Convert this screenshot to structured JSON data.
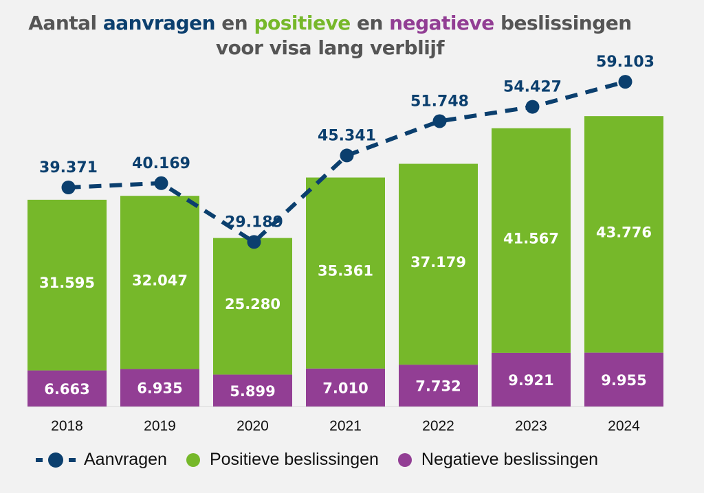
{
  "title": {
    "line1_parts": [
      {
        "text": "Aantal ",
        "color": "default"
      },
      {
        "text": "aanvragen",
        "color": "blue"
      },
      {
        "text": " en ",
        "color": "default"
      },
      {
        "text": "positieve",
        "color": "green"
      },
      {
        "text": " en ",
        "color": "default"
      },
      {
        "text": "negatieve",
        "color": "purple"
      },
      {
        "text": " beslissingen",
        "color": "default"
      }
    ],
    "line2": "voor visa lang verblijf"
  },
  "colors": {
    "title": "#555555",
    "aanvragen": "#0b3f6e",
    "positieve": "#76b82a",
    "negatieve": "#923e94",
    "background": "#f2f2f2"
  },
  "legend": {
    "items": [
      {
        "label": "Aanvragen",
        "key": "aanvragen"
      },
      {
        "label": "Positieve beslissingen",
        "key": "positieve"
      },
      {
        "label": "Negatieve beslissingen",
        "key": "negatieve"
      }
    ]
  },
  "chart_data": {
    "type": "bar",
    "stacked": true,
    "title": "Aantal aanvragen en positieve en negatieve beslissingen voor visa lang verblijf",
    "xlabel": "",
    "ylabel": "",
    "categories": [
      "2018",
      "2019",
      "2020",
      "2021",
      "2022",
      "2023",
      "2024"
    ],
    "series": [
      {
        "name": "Negatieve beslissingen",
        "kind": "bar",
        "values": [
          6663,
          6935,
          5899,
          7010,
          7732,
          9921,
          9955
        ],
        "labels": [
          "6.663",
          "6.935",
          "5.899",
          "7.010",
          "7.732",
          "9.921",
          "9.955"
        ]
      },
      {
        "name": "Positieve beslissingen",
        "kind": "bar",
        "values": [
          31595,
          32047,
          25280,
          35361,
          37179,
          41567,
          43776
        ],
        "labels": [
          "31.595",
          "32.047",
          "25.280",
          "35.361",
          "37.179",
          "41.567",
          "43.776"
        ]
      },
      {
        "name": "Aanvragen",
        "kind": "line",
        "style": "dashed",
        "values": [
          39371,
          40169,
          29189,
          45341,
          51748,
          54427,
          59103
        ],
        "labels": [
          "39.371",
          "40.169",
          "29.189",
          "45.341",
          "51.748",
          "54.427",
          "59.103"
        ]
      }
    ],
    "grid": false,
    "y_axis_visible": false,
    "legend_position": "bottom"
  }
}
